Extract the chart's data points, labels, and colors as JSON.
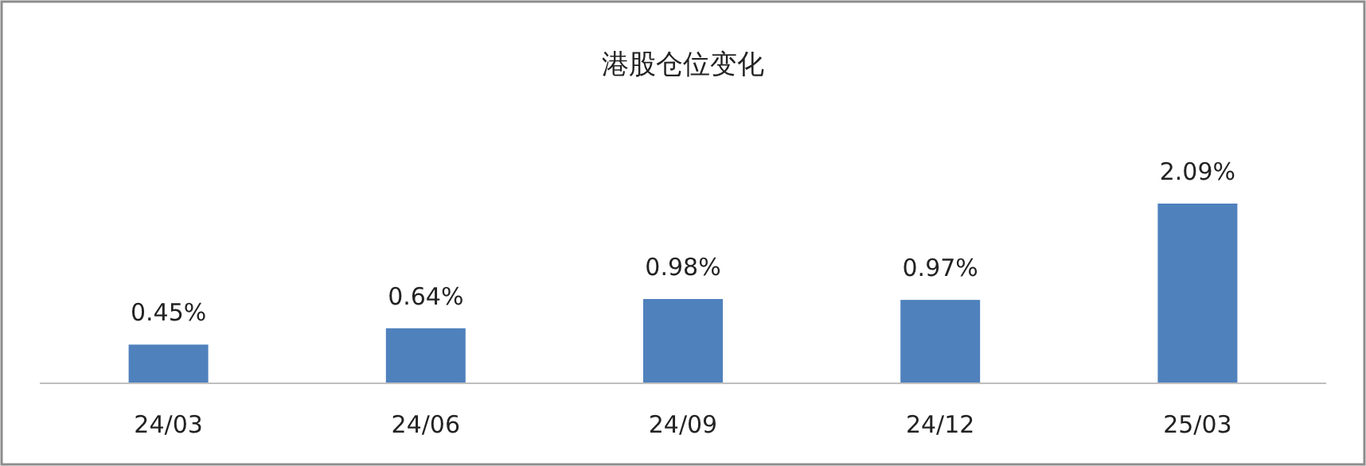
{
  "chart_data": {
    "type": "bar",
    "title": "港股仓位变化",
    "categories": [
      "24/03",
      "24/06",
      "24/09",
      "24/12",
      "25/03"
    ],
    "values": [
      0.45,
      0.64,
      0.98,
      0.97,
      2.09
    ],
    "value_labels": [
      "0.45%",
      "0.64%",
      "0.98%",
      "0.97%",
      "2.09%"
    ],
    "color": "#4f81bd"
  }
}
